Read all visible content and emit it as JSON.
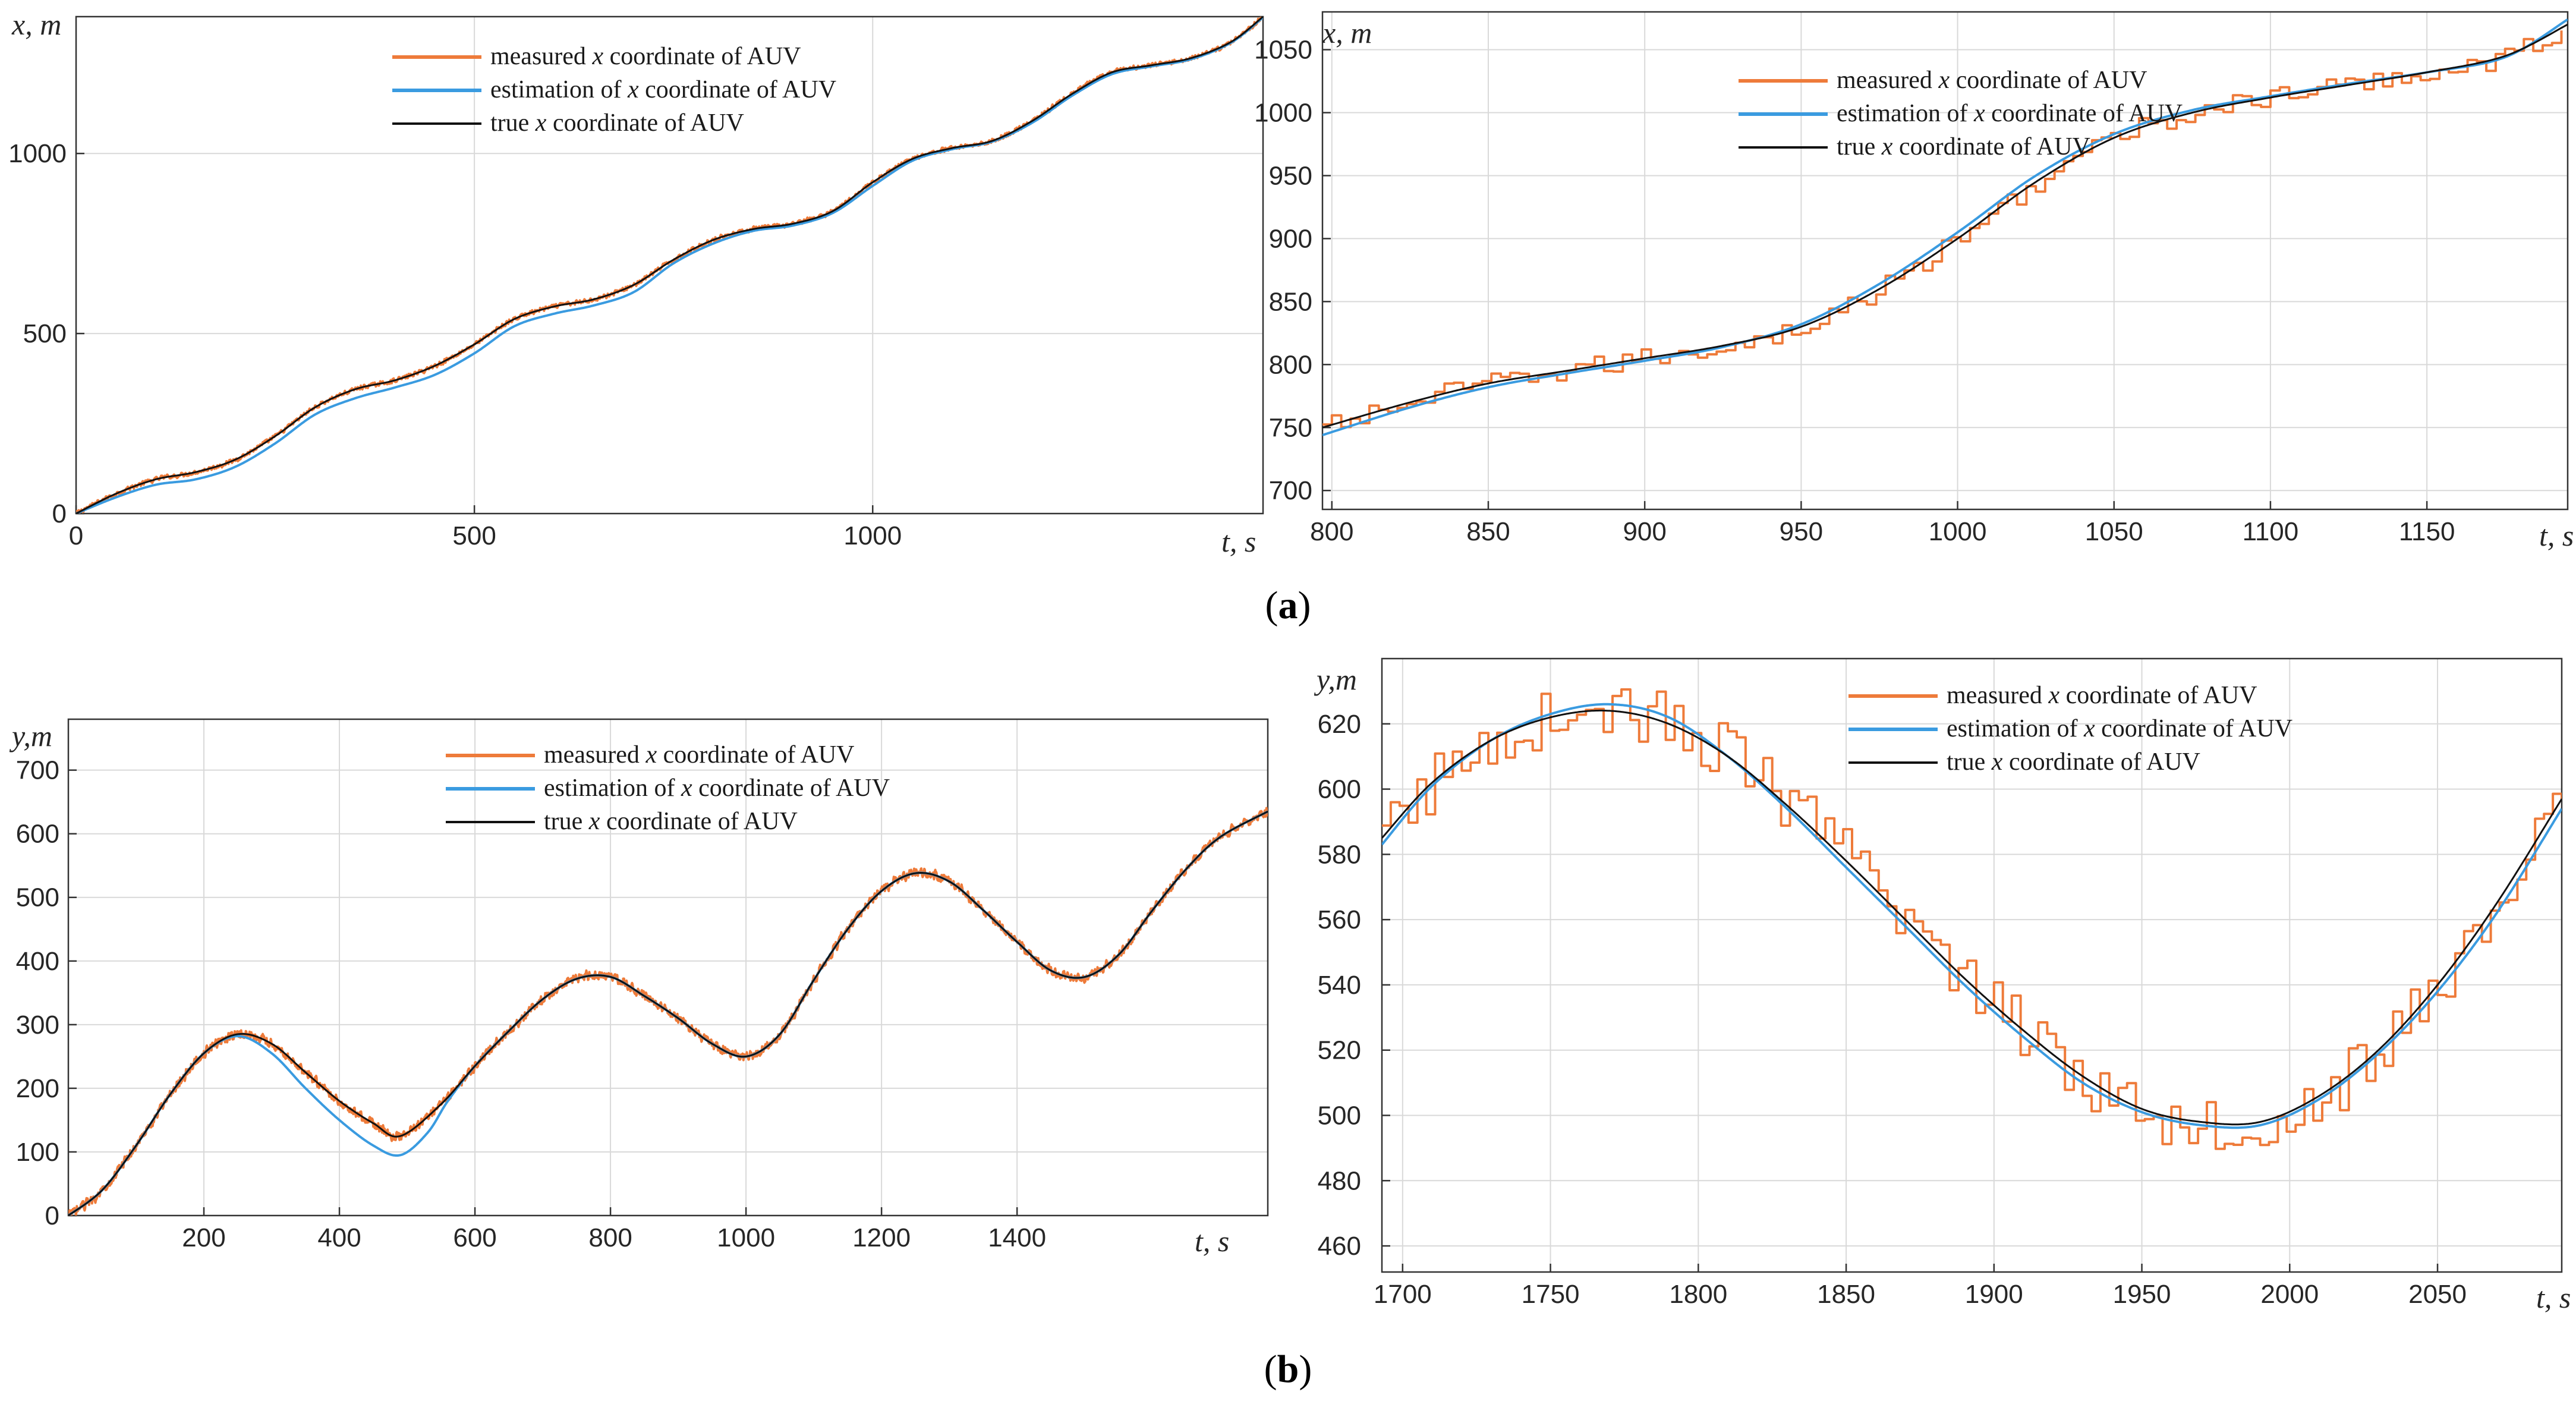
{
  "colors": {
    "measured": "#ee7b3a",
    "estimation": "#3a9be0",
    "true": "#111111",
    "grid": "#d9d9d9",
    "axis": "#333333"
  },
  "captions": [
    "(a)",
    "(b)"
  ],
  "chart_data": [
    {
      "type": "line",
      "id": "a-left",
      "xlabel": "t, s",
      "ylabel": "x, m",
      "xlim": [
        0,
        1490
      ],
      "ylim": [
        0,
        1380
      ],
      "xticks": [
        0,
        500,
        1000
      ],
      "yticks": [
        0,
        500,
        1000
      ],
      "grid": true,
      "legend": [
        "measured x coordinate of AUV",
        "estimation of x coordinate of AUV",
        "true x coordinate of AUV"
      ],
      "legend_position": "top-center",
      "series": [
        {
          "name": "true x coordinate of AUV",
          "key": "true",
          "x": [
            0,
            50,
            100,
            150,
            200,
            250,
            300,
            350,
            400,
            450,
            500,
            550,
            600,
            650,
            700,
            750,
            800,
            850,
            900,
            950,
            1000,
            1050,
            1100,
            1150,
            1200,
            1250,
            1300,
            1350,
            1400,
            1450,
            1490
          ],
          "y": [
            0,
            55,
            95,
            115,
            150,
            215,
            295,
            345,
            370,
            410,
            470,
            540,
            575,
            595,
            635,
            705,
            760,
            790,
            805,
            840,
            920,
            985,
            1015,
            1035,
            1090,
            1165,
            1225,
            1245,
            1265,
            1310,
            1380
          ]
        },
        {
          "name": "estimation of x coordinate of AUV",
          "key": "estimation",
          "x": [
            0,
            50,
            100,
            150,
            200,
            250,
            300,
            350,
            400,
            450,
            500,
            550,
            600,
            650,
            700,
            750,
            800,
            850,
            900,
            950,
            1000,
            1050,
            1100,
            1150,
            1200,
            1250,
            1300,
            1350,
            1400,
            1450,
            1490
          ],
          "y": [
            0,
            45,
            80,
            95,
            130,
            195,
            275,
            320,
            350,
            385,
            445,
            520,
            555,
            578,
            615,
            695,
            750,
            785,
            800,
            835,
            910,
            980,
            1012,
            1033,
            1085,
            1160,
            1220,
            1242,
            1262,
            1308,
            1378
          ]
        },
        {
          "name": "measured x coordinate of AUV",
          "key": "measured",
          "x": [
            0,
            50,
            100,
            150,
            200,
            250,
            300,
            350,
            400,
            450,
            500,
            550,
            600,
            650,
            700,
            750,
            800,
            850,
            900,
            950,
            1000,
            1050,
            1100,
            1150,
            1200,
            1250,
            1300,
            1350,
            1400,
            1450,
            1490
          ],
          "y": [
            0,
            55,
            95,
            115,
            150,
            215,
            295,
            345,
            370,
            410,
            470,
            540,
            575,
            595,
            635,
            705,
            760,
            790,
            805,
            840,
            920,
            985,
            1015,
            1035,
            1090,
            1165,
            1225,
            1245,
            1265,
            1310,
            1380
          ],
          "noise": 6
        }
      ]
    },
    {
      "type": "line",
      "id": "a-right",
      "xlabel": "t, s",
      "ylabel": "x, m",
      "xlim": [
        797,
        1195
      ],
      "ylim": [
        685,
        1080
      ],
      "xticks": [
        800,
        850,
        900,
        950,
        1000,
        1050,
        1100,
        1150
      ],
      "yticks": [
        700,
        750,
        800,
        850,
        900,
        950,
        1000,
        1050
      ],
      "grid": true,
      "legend": [
        "measured x coordinate of AUV",
        "estimation of x coordinate of AUV",
        "true x coordinate of AUV"
      ],
      "legend_position": "top-center",
      "series": [
        {
          "name": "true x coordinate of AUV",
          "key": "true",
          "x": [
            797,
            825,
            850,
            875,
            900,
            925,
            950,
            975,
            1000,
            1025,
            1050,
            1075,
            1100,
            1125,
            1150,
            1175,
            1195
          ],
          "y": [
            750,
            770,
            785,
            795,
            805,
            815,
            830,
            860,
            900,
            945,
            980,
            1000,
            1012,
            1022,
            1032,
            1045,
            1070
          ]
        },
        {
          "name": "estimation of x coordinate of AUV",
          "key": "estimation",
          "x": [
            797,
            825,
            850,
            875,
            900,
            925,
            950,
            975,
            1000,
            1025,
            1050,
            1075,
            1100,
            1125,
            1150,
            1175,
            1195
          ],
          "y": [
            744,
            766,
            782,
            793,
            803,
            814,
            832,
            864,
            905,
            950,
            983,
            1002,
            1013,
            1023,
            1032,
            1044,
            1074
          ]
        },
        {
          "name": "measured x coordinate of AUV",
          "key": "measured",
          "x": [
            797,
            825,
            850,
            875,
            900,
            925,
            950,
            975,
            1000,
            1025,
            1050,
            1075,
            1100,
            1125,
            1150,
            1175,
            1195
          ],
          "y": [
            750,
            770,
            785,
            795,
            805,
            815,
            830,
            860,
            900,
            945,
            980,
            1000,
            1012,
            1022,
            1032,
            1045,
            1070
          ],
          "noise": 8,
          "step": 3
        }
      ]
    },
    {
      "type": "line",
      "id": "b-left",
      "xlabel": "t, s",
      "ylabel": "y,m",
      "xlim": [
        0,
        1770
      ],
      "ylim": [
        0,
        780
      ],
      "xticks": [
        200,
        400,
        600,
        800,
        1000,
        1200,
        1400
      ],
      "yticks": [
        0,
        100,
        200,
        300,
        400,
        500,
        600,
        700
      ],
      "grid": true,
      "legend": [
        "measured x coordinate of AUV",
        "estimation of x coordinate of AUV",
        "true x coordinate of AUV"
      ],
      "legend_position": "top-center",
      "series": [
        {
          "name": "true x coordinate of AUV",
          "key": "true",
          "x": [
            0,
            50,
            100,
            150,
            200,
            250,
            300,
            350,
            400,
            450,
            490,
            550,
            600,
            650,
            700,
            750,
            800,
            850,
            900,
            950,
            1000,
            1050,
            1100,
            1150,
            1200,
            1250,
            1300,
            1350,
            1400,
            1450,
            1500,
            1550,
            1600,
            1650,
            1700,
            1770
          ],
          "y": [
            0,
            40,
            110,
            190,
            255,
            285,
            270,
            225,
            180,
            145,
            125,
            175,
            235,
            290,
            340,
            372,
            375,
            345,
            310,
            270,
            250,
            285,
            370,
            450,
            510,
            538,
            525,
            480,
            430,
            385,
            375,
            410,
            480,
            545,
            595,
            635
          ]
        },
        {
          "name": "estimation of x coordinate of AUV",
          "key": "estimation",
          "x": [
            0,
            50,
            100,
            150,
            200,
            250,
            300,
            350,
            400,
            450,
            490,
            530,
            560,
            600,
            650,
            700,
            750,
            800,
            850,
            900,
            950,
            1000,
            1050,
            1100,
            1150,
            1200,
            1250,
            1300,
            1350,
            1400,
            1450,
            1500,
            1550,
            1600,
            1650,
            1700,
            1770
          ],
          "y": [
            0,
            40,
            110,
            190,
            255,
            282,
            255,
            200,
            150,
            110,
            95,
            130,
            180,
            235,
            290,
            340,
            372,
            375,
            345,
            310,
            270,
            250,
            285,
            370,
            450,
            510,
            538,
            525,
            480,
            430,
            385,
            375,
            410,
            480,
            545,
            595,
            635
          ]
        },
        {
          "name": "measured x coordinate of AUV",
          "key": "measured",
          "x": [
            0,
            50,
            100,
            150,
            200,
            250,
            300,
            350,
            400,
            450,
            490,
            550,
            600,
            650,
            700,
            750,
            800,
            850,
            900,
            950,
            1000,
            1050,
            1100,
            1150,
            1200,
            1250,
            1300,
            1350,
            1400,
            1450,
            1500,
            1550,
            1600,
            1650,
            1700,
            1770
          ],
          "y": [
            0,
            40,
            110,
            190,
            255,
            285,
            270,
            225,
            180,
            145,
            125,
            175,
            235,
            290,
            340,
            372,
            375,
            345,
            310,
            270,
            250,
            285,
            370,
            450,
            510,
            538,
            525,
            480,
            430,
            385,
            375,
            410,
            480,
            545,
            595,
            635
          ],
          "noise": 7
        }
      ]
    },
    {
      "type": "line",
      "id": "b-right",
      "xlabel": "t, s",
      "ylabel": "y,m",
      "xlim": [
        1693,
        2092
      ],
      "ylim": [
        452,
        640
      ],
      "xticks": [
        1700,
        1750,
        1800,
        1850,
        1900,
        1950,
        2000,
        2050
      ],
      "yticks": [
        460,
        480,
        500,
        520,
        540,
        560,
        580,
        600,
        620
      ],
      "grid": true,
      "legend": [
        "measured x coordinate of AUV",
        "estimation of x coordinate of AUV",
        "true x coordinate of AUV"
      ],
      "legend_position": "top-right",
      "series": [
        {
          "name": "true x coordinate of AUV",
          "key": "true",
          "x": [
            1693,
            1710,
            1730,
            1750,
            1770,
            1790,
            1810,
            1830,
            1850,
            1870,
            1890,
            1910,
            1930,
            1950,
            1970,
            1990,
            2010,
            2030,
            2050,
            2070,
            2092
          ],
          "y": [
            585,
            602,
            615,
            622,
            624,
            620,
            610,
            595,
            578,
            560,
            542,
            526,
            512,
            502,
            498,
            498,
            506,
            520,
            540,
            565,
            597
          ]
        },
        {
          "name": "estimation of x coordinate of AUV",
          "key": "estimation",
          "x": [
            1693,
            1710,
            1730,
            1750,
            1770,
            1790,
            1810,
            1830,
            1850,
            1870,
            1890,
            1910,
            1930,
            1950,
            1970,
            1990,
            2010,
            2030,
            2050,
            2070,
            2092
          ],
          "y": [
            583,
            601,
            615,
            623,
            626,
            622,
            610,
            594,
            576,
            558,
            540,
            524,
            510,
            501,
            497,
            497,
            505,
            519,
            538,
            562,
            594
          ]
        },
        {
          "name": "measured x coordinate of AUV",
          "key": "measured",
          "x": [
            1693,
            1710,
            1730,
            1750,
            1770,
            1790,
            1810,
            1830,
            1850,
            1870,
            1890,
            1910,
            1930,
            1950,
            1970,
            1990,
            2010,
            2030,
            2050,
            2070,
            2092
          ],
          "y": [
            585,
            602,
            615,
            622,
            624,
            620,
            610,
            595,
            578,
            560,
            542,
            526,
            512,
            502,
            498,
            498,
            506,
            520,
            540,
            565,
            597
          ],
          "noise": 9,
          "step": 3
        }
      ]
    }
  ]
}
